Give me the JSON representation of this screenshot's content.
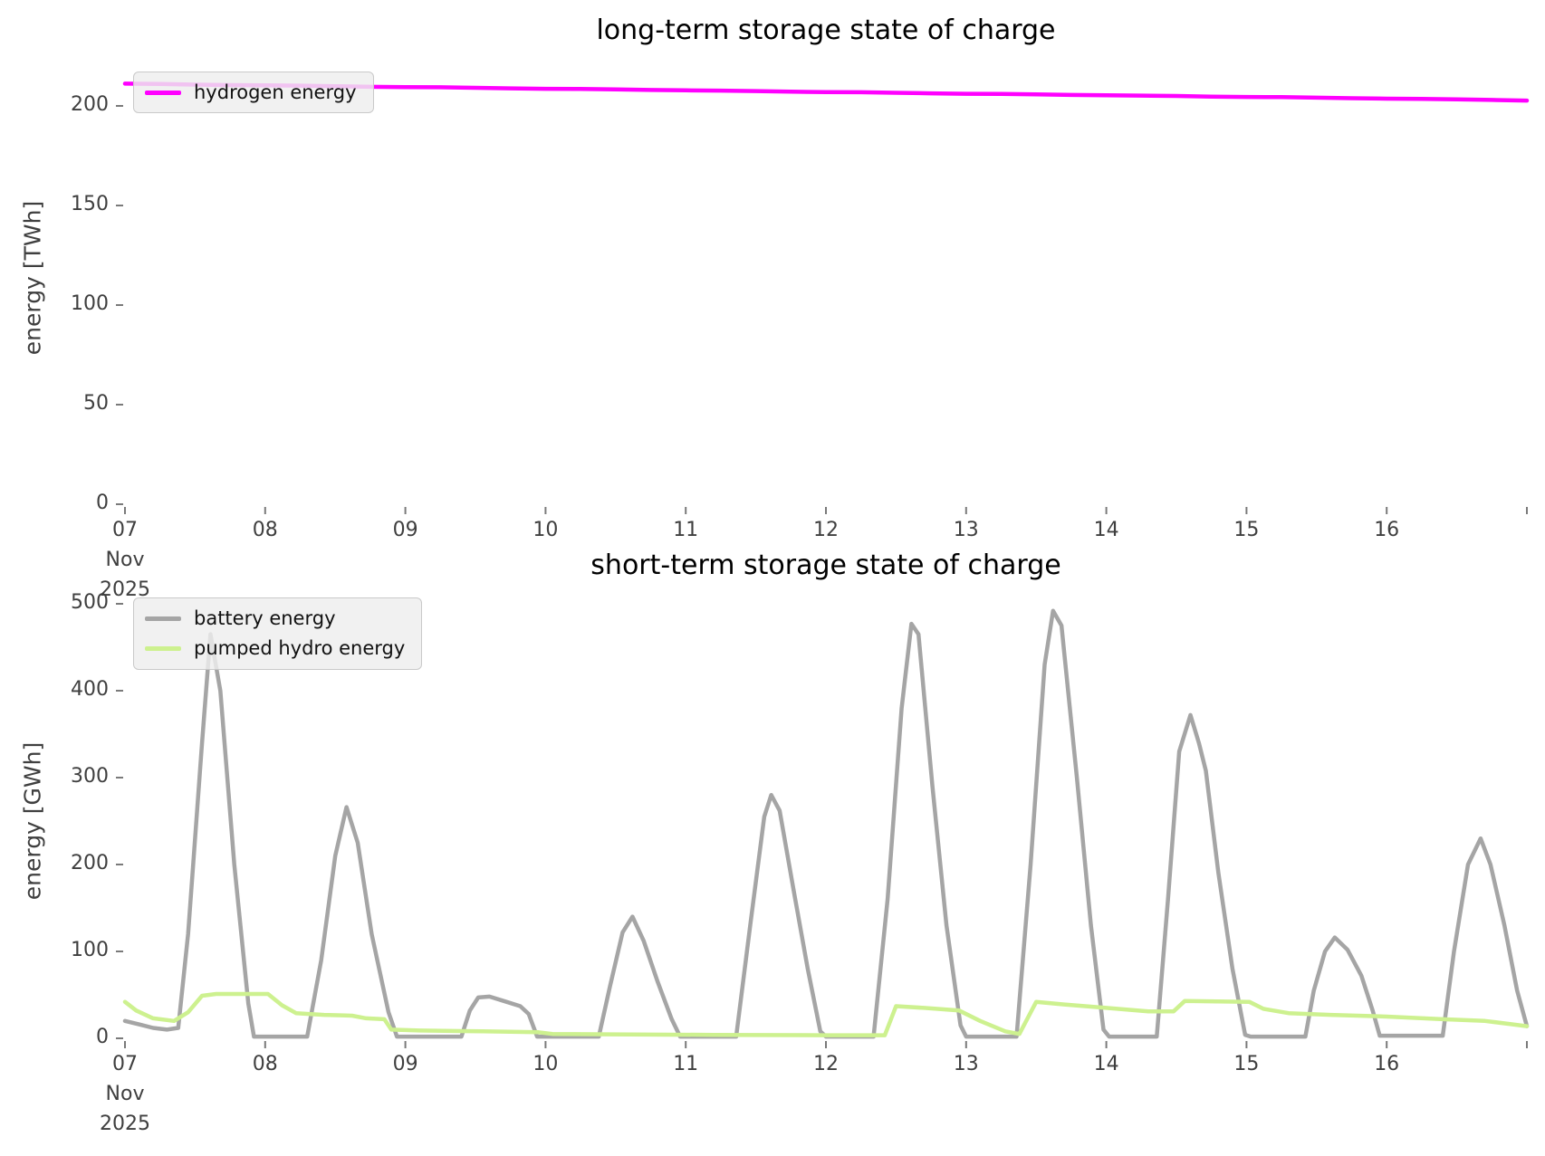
{
  "chart_data": [
    {
      "type": "line",
      "title": "long-term storage state of charge",
      "ylabel": "energy [TWh]",
      "ylim": [
        0,
        227
      ],
      "x_range": [
        7,
        17
      ],
      "x_unit": "day of November 2025",
      "grid": false,
      "legend_position": "upper left",
      "yticks": [
        0,
        50,
        100,
        150,
        200
      ],
      "xticks": [
        "07",
        "08",
        "09",
        "10",
        "11",
        "12",
        "13",
        "14",
        "15",
        "16",
        ""
      ],
      "xtick_sublabels": [
        "Nov",
        "2025"
      ],
      "legend": [
        {
          "label": "hydrogen energy",
          "color": "#ff00ff"
        }
      ],
      "series": [
        {
          "name": "hydrogen energy",
          "color": "#ff00ff",
          "points": [
            [
              7.0,
              211.2
            ],
            [
              7.25,
              211.05
            ],
            [
              7.5,
              210.7
            ],
            [
              7.75,
              210.45
            ],
            [
              8.0,
              210.3
            ],
            [
              8.25,
              210.2
            ],
            [
              8.5,
              209.9
            ],
            [
              8.75,
              209.6
            ],
            [
              9.0,
              209.45
            ],
            [
              9.25,
              209.35
            ],
            [
              9.5,
              209.1
            ],
            [
              9.75,
              208.8
            ],
            [
              10.0,
              208.6
            ],
            [
              10.25,
              208.5
            ],
            [
              10.5,
              208.3
            ],
            [
              10.75,
              208.0
            ],
            [
              11.0,
              207.8
            ],
            [
              11.25,
              207.7
            ],
            [
              11.5,
              207.45
            ],
            [
              11.75,
              207.15
            ],
            [
              12.0,
              206.95
            ],
            [
              12.25,
              206.85
            ],
            [
              12.5,
              206.6
            ],
            [
              12.75,
              206.3
            ],
            [
              13.0,
              206.1
            ],
            [
              13.25,
              206.0
            ],
            [
              13.5,
              205.8
            ],
            [
              13.75,
              205.5
            ],
            [
              14.0,
              205.3
            ],
            [
              14.25,
              205.2
            ],
            [
              14.5,
              205.0
            ],
            [
              14.75,
              204.7
            ],
            [
              15.0,
              204.5
            ],
            [
              15.25,
              204.4
            ],
            [
              15.5,
              204.15
            ],
            [
              15.75,
              203.85
            ],
            [
              16.0,
              203.65
            ],
            [
              16.25,
              203.55
            ],
            [
              16.5,
              203.3
            ],
            [
              16.75,
              203.0
            ],
            [
              17.0,
              202.7
            ]
          ]
        }
      ]
    },
    {
      "type": "line",
      "title": "short-term storage state of charge",
      "ylabel": "energy [GWh]",
      "ylim": [
        0,
        500
      ],
      "x_range": [
        7,
        17
      ],
      "x_unit": "day of November 2025",
      "grid": false,
      "legend_position": "upper left",
      "yticks": [
        0,
        100,
        200,
        300,
        400,
        500
      ],
      "xticks": [
        "07",
        "08",
        "09",
        "10",
        "11",
        "12",
        "13",
        "14",
        "15",
        "16",
        ""
      ],
      "xtick_sublabels": [
        "Nov",
        "2025"
      ],
      "legend": [
        {
          "label": "battery energy",
          "color": "#a5a5a5"
        },
        {
          "label": "pumped hydro energy",
          "color": "#cdf18f"
        }
      ],
      "series": [
        {
          "name": "battery energy",
          "color": "#a5a5a5",
          "points": [
            [
              7.0,
              20
            ],
            [
              7.1,
              16
            ],
            [
              7.2,
              12
            ],
            [
              7.3,
              10
            ],
            [
              7.38,
              12
            ],
            [
              7.45,
              120
            ],
            [
              7.55,
              340
            ],
            [
              7.61,
              465
            ],
            [
              7.68,
              400
            ],
            [
              7.78,
              200
            ],
            [
              7.88,
              40
            ],
            [
              7.92,
              2
            ],
            [
              8.3,
              2
            ],
            [
              8.4,
              90
            ],
            [
              8.5,
              210
            ],
            [
              8.58,
              266
            ],
            [
              8.66,
              225
            ],
            [
              8.76,
              120
            ],
            [
              8.88,
              30
            ],
            [
              8.94,
              2
            ],
            [
              9.4,
              2
            ],
            [
              9.46,
              32
            ],
            [
              9.52,
              47
            ],
            [
              9.6,
              48
            ],
            [
              9.7,
              43
            ],
            [
              9.82,
              37
            ],
            [
              9.88,
              28
            ],
            [
              9.94,
              2
            ],
            [
              10.38,
              2
            ],
            [
              10.46,
              60
            ],
            [
              10.55,
              122
            ],
            [
              10.62,
              140
            ],
            [
              10.7,
              112
            ],
            [
              10.8,
              65
            ],
            [
              10.9,
              22
            ],
            [
              10.96,
              2
            ],
            [
              11.36,
              2
            ],
            [
              11.46,
              130
            ],
            [
              11.56,
              255
            ],
            [
              11.61,
              280
            ],
            [
              11.67,
              262
            ],
            [
              11.77,
              170
            ],
            [
              11.87,
              80
            ],
            [
              11.96,
              8
            ],
            [
              12.0,
              2
            ],
            [
              12.34,
              2
            ],
            [
              12.44,
              160
            ],
            [
              12.54,
              380
            ],
            [
              12.61,
              477
            ],
            [
              12.66,
              465
            ],
            [
              12.76,
              290
            ],
            [
              12.86,
              130
            ],
            [
              12.96,
              15
            ],
            [
              13.0,
              2
            ],
            [
              13.36,
              2
            ],
            [
              13.46,
              200
            ],
            [
              13.56,
              430
            ],
            [
              13.62,
              492
            ],
            [
              13.68,
              475
            ],
            [
              13.79,
              300
            ],
            [
              13.89,
              130
            ],
            [
              13.98,
              10
            ],
            [
              14.02,
              2
            ],
            [
              14.36,
              2
            ],
            [
              14.44,
              160
            ],
            [
              14.52,
              330
            ],
            [
              14.6,
              372
            ],
            [
              14.66,
              340
            ],
            [
              14.71,
              308
            ],
            [
              14.8,
              190
            ],
            [
              14.9,
              80
            ],
            [
              14.99,
              4
            ],
            [
              15.03,
              2
            ],
            [
              15.42,
              2
            ],
            [
              15.48,
              55
            ],
            [
              15.56,
              100
            ],
            [
              15.63,
              116
            ],
            [
              15.72,
              102
            ],
            [
              15.82,
              72
            ],
            [
              15.9,
              32
            ],
            [
              15.95,
              3
            ],
            [
              16.4,
              3
            ],
            [
              16.48,
              100
            ],
            [
              16.58,
              200
            ],
            [
              16.67,
              230
            ],
            [
              16.74,
              200
            ],
            [
              16.84,
              130
            ],
            [
              16.93,
              55
            ],
            [
              17.0,
              14
            ]
          ]
        },
        {
          "name": "pumped hydro energy",
          "color": "#cdf18f",
          "points": [
            [
              7.0,
              42
            ],
            [
              7.08,
              32
            ],
            [
              7.2,
              23
            ],
            [
              7.35,
              20
            ],
            [
              7.45,
              30
            ],
            [
              7.55,
              49
            ],
            [
              7.65,
              51
            ],
            [
              8.02,
              51
            ],
            [
              8.12,
              38
            ],
            [
              8.22,
              29
            ],
            [
              8.42,
              27
            ],
            [
              8.62,
              26
            ],
            [
              8.72,
              23
            ],
            [
              8.85,
              22
            ],
            [
              8.9,
              10
            ],
            [
              9.1,
              9
            ],
            [
              9.55,
              8
            ],
            [
              9.95,
              7
            ],
            [
              10.05,
              5
            ],
            [
              10.6,
              4.5
            ],
            [
              11.2,
              4
            ],
            [
              12.0,
              3.5
            ],
            [
              12.42,
              3.5
            ],
            [
              12.5,
              37
            ],
            [
              12.7,
              35
            ],
            [
              12.95,
              32
            ],
            [
              13.1,
              20
            ],
            [
              13.28,
              8
            ],
            [
              13.38,
              5
            ],
            [
              13.5,
              42
            ],
            [
              13.7,
              39
            ],
            [
              14.0,
              35
            ],
            [
              14.3,
              31
            ],
            [
              14.48,
              31
            ],
            [
              14.56,
              43
            ],
            [
              15.02,
              42
            ],
            [
              15.12,
              34
            ],
            [
              15.3,
              29
            ],
            [
              15.6,
              27
            ],
            [
              16.0,
              25
            ],
            [
              16.4,
              22
            ],
            [
              16.7,
              20
            ],
            [
              16.9,
              16
            ],
            [
              17.0,
              14
            ]
          ]
        }
      ]
    }
  ]
}
